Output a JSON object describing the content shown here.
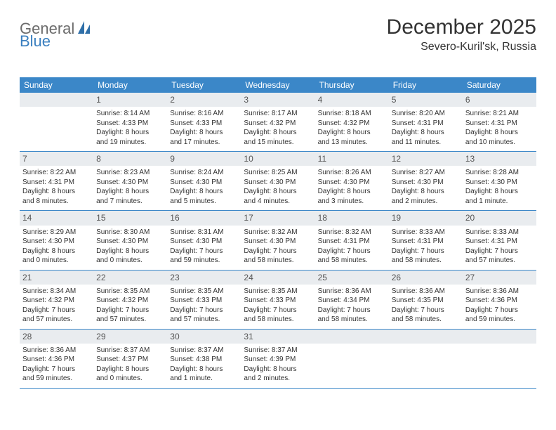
{
  "logo": {
    "text1": "General",
    "text2": "Blue"
  },
  "title": "December 2025",
  "location": "Severo-Kuril'sk, Russia",
  "colors": {
    "header_bg": "#3b87c8",
    "header_text": "#ffffff",
    "daynum_bg": "#e9ecef",
    "text": "#333333",
    "logo_gray": "#6b6b6b",
    "logo_blue": "#3a7fbf",
    "border": "#3b87c8",
    "page_bg": "#ffffff"
  },
  "day_names": [
    "Sunday",
    "Monday",
    "Tuesday",
    "Wednesday",
    "Thursday",
    "Friday",
    "Saturday"
  ],
  "weeks": [
    [
      {
        "n": "",
        "sunrise": "",
        "sunset": "",
        "d1": "",
        "d2": ""
      },
      {
        "n": "1",
        "sunrise": "Sunrise: 8:14 AM",
        "sunset": "Sunset: 4:33 PM",
        "d1": "Daylight: 8 hours",
        "d2": "and 19 minutes."
      },
      {
        "n": "2",
        "sunrise": "Sunrise: 8:16 AM",
        "sunset": "Sunset: 4:33 PM",
        "d1": "Daylight: 8 hours",
        "d2": "and 17 minutes."
      },
      {
        "n": "3",
        "sunrise": "Sunrise: 8:17 AM",
        "sunset": "Sunset: 4:32 PM",
        "d1": "Daylight: 8 hours",
        "d2": "and 15 minutes."
      },
      {
        "n": "4",
        "sunrise": "Sunrise: 8:18 AM",
        "sunset": "Sunset: 4:32 PM",
        "d1": "Daylight: 8 hours",
        "d2": "and 13 minutes."
      },
      {
        "n": "5",
        "sunrise": "Sunrise: 8:20 AM",
        "sunset": "Sunset: 4:31 PM",
        "d1": "Daylight: 8 hours",
        "d2": "and 11 minutes."
      },
      {
        "n": "6",
        "sunrise": "Sunrise: 8:21 AM",
        "sunset": "Sunset: 4:31 PM",
        "d1": "Daylight: 8 hours",
        "d2": "and 10 minutes."
      }
    ],
    [
      {
        "n": "7",
        "sunrise": "Sunrise: 8:22 AM",
        "sunset": "Sunset: 4:31 PM",
        "d1": "Daylight: 8 hours",
        "d2": "and 8 minutes."
      },
      {
        "n": "8",
        "sunrise": "Sunrise: 8:23 AM",
        "sunset": "Sunset: 4:30 PM",
        "d1": "Daylight: 8 hours",
        "d2": "and 7 minutes."
      },
      {
        "n": "9",
        "sunrise": "Sunrise: 8:24 AM",
        "sunset": "Sunset: 4:30 PM",
        "d1": "Daylight: 8 hours",
        "d2": "and 5 minutes."
      },
      {
        "n": "10",
        "sunrise": "Sunrise: 8:25 AM",
        "sunset": "Sunset: 4:30 PM",
        "d1": "Daylight: 8 hours",
        "d2": "and 4 minutes."
      },
      {
        "n": "11",
        "sunrise": "Sunrise: 8:26 AM",
        "sunset": "Sunset: 4:30 PM",
        "d1": "Daylight: 8 hours",
        "d2": "and 3 minutes."
      },
      {
        "n": "12",
        "sunrise": "Sunrise: 8:27 AM",
        "sunset": "Sunset: 4:30 PM",
        "d1": "Daylight: 8 hours",
        "d2": "and 2 minutes."
      },
      {
        "n": "13",
        "sunrise": "Sunrise: 8:28 AM",
        "sunset": "Sunset: 4:30 PM",
        "d1": "Daylight: 8 hours",
        "d2": "and 1 minute."
      }
    ],
    [
      {
        "n": "14",
        "sunrise": "Sunrise: 8:29 AM",
        "sunset": "Sunset: 4:30 PM",
        "d1": "Daylight: 8 hours",
        "d2": "and 0 minutes."
      },
      {
        "n": "15",
        "sunrise": "Sunrise: 8:30 AM",
        "sunset": "Sunset: 4:30 PM",
        "d1": "Daylight: 8 hours",
        "d2": "and 0 minutes."
      },
      {
        "n": "16",
        "sunrise": "Sunrise: 8:31 AM",
        "sunset": "Sunset: 4:30 PM",
        "d1": "Daylight: 7 hours",
        "d2": "and 59 minutes."
      },
      {
        "n": "17",
        "sunrise": "Sunrise: 8:32 AM",
        "sunset": "Sunset: 4:30 PM",
        "d1": "Daylight: 7 hours",
        "d2": "and 58 minutes."
      },
      {
        "n": "18",
        "sunrise": "Sunrise: 8:32 AM",
        "sunset": "Sunset: 4:31 PM",
        "d1": "Daylight: 7 hours",
        "d2": "and 58 minutes."
      },
      {
        "n": "19",
        "sunrise": "Sunrise: 8:33 AM",
        "sunset": "Sunset: 4:31 PM",
        "d1": "Daylight: 7 hours",
        "d2": "and 58 minutes."
      },
      {
        "n": "20",
        "sunrise": "Sunrise: 8:33 AM",
        "sunset": "Sunset: 4:31 PM",
        "d1": "Daylight: 7 hours",
        "d2": "and 57 minutes."
      }
    ],
    [
      {
        "n": "21",
        "sunrise": "Sunrise: 8:34 AM",
        "sunset": "Sunset: 4:32 PM",
        "d1": "Daylight: 7 hours",
        "d2": "and 57 minutes."
      },
      {
        "n": "22",
        "sunrise": "Sunrise: 8:35 AM",
        "sunset": "Sunset: 4:32 PM",
        "d1": "Daylight: 7 hours",
        "d2": "and 57 minutes."
      },
      {
        "n": "23",
        "sunrise": "Sunrise: 8:35 AM",
        "sunset": "Sunset: 4:33 PM",
        "d1": "Daylight: 7 hours",
        "d2": "and 57 minutes."
      },
      {
        "n": "24",
        "sunrise": "Sunrise: 8:35 AM",
        "sunset": "Sunset: 4:33 PM",
        "d1": "Daylight: 7 hours",
        "d2": "and 58 minutes."
      },
      {
        "n": "25",
        "sunrise": "Sunrise: 8:36 AM",
        "sunset": "Sunset: 4:34 PM",
        "d1": "Daylight: 7 hours",
        "d2": "and 58 minutes."
      },
      {
        "n": "26",
        "sunrise": "Sunrise: 8:36 AM",
        "sunset": "Sunset: 4:35 PM",
        "d1": "Daylight: 7 hours",
        "d2": "and 58 minutes."
      },
      {
        "n": "27",
        "sunrise": "Sunrise: 8:36 AM",
        "sunset": "Sunset: 4:36 PM",
        "d1": "Daylight: 7 hours",
        "d2": "and 59 minutes."
      }
    ],
    [
      {
        "n": "28",
        "sunrise": "Sunrise: 8:36 AM",
        "sunset": "Sunset: 4:36 PM",
        "d1": "Daylight: 7 hours",
        "d2": "and 59 minutes."
      },
      {
        "n": "29",
        "sunrise": "Sunrise: 8:37 AM",
        "sunset": "Sunset: 4:37 PM",
        "d1": "Daylight: 8 hours",
        "d2": "and 0 minutes."
      },
      {
        "n": "30",
        "sunrise": "Sunrise: 8:37 AM",
        "sunset": "Sunset: 4:38 PM",
        "d1": "Daylight: 8 hours",
        "d2": "and 1 minute."
      },
      {
        "n": "31",
        "sunrise": "Sunrise: 8:37 AM",
        "sunset": "Sunset: 4:39 PM",
        "d1": "Daylight: 8 hours",
        "d2": "and 2 minutes."
      },
      {
        "n": "",
        "sunrise": "",
        "sunset": "",
        "d1": "",
        "d2": ""
      },
      {
        "n": "",
        "sunrise": "",
        "sunset": "",
        "d1": "",
        "d2": ""
      },
      {
        "n": "",
        "sunrise": "",
        "sunset": "",
        "d1": "",
        "d2": ""
      }
    ]
  ]
}
